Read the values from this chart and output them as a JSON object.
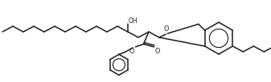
{
  "bg_color": "#ffffff",
  "line_color": "#1a1a1a",
  "lw": 1.1,
  "figsize": [
    3.37,
    1.03
  ],
  "dpi": 100,
  "oh_label": "OH",
  "o_label": "O",
  "o2_label": "O",
  "co_label": "O"
}
